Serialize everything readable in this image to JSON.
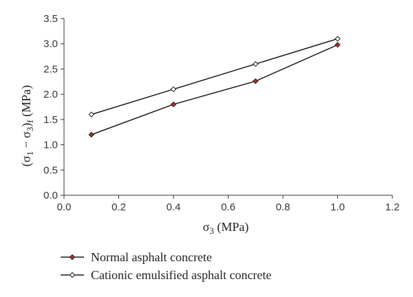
{
  "chart_data": {
    "type": "line",
    "title": "",
    "xlabel": {
      "symbol": "σ",
      "sub": "3",
      "unit": " (MPa)"
    },
    "ylabel": {
      "open": "(σ",
      "sub1": "1",
      "mid": " − σ",
      "sub3": "3",
      "close": ")",
      "subf": "f",
      "unit": " (MPa)"
    },
    "xlim": [
      0.0,
      1.2
    ],
    "ylim": [
      0.0,
      3.5
    ],
    "xticks": [
      0.0,
      0.2,
      0.4,
      0.6,
      0.8,
      1.0,
      1.2
    ],
    "yticks": [
      0.0,
      0.5,
      1.0,
      1.5,
      2.0,
      2.5,
      3.0,
      3.5
    ],
    "grid": false,
    "legend_position": "bottom-left",
    "series": [
      {
        "name": "Normal asphalt concrete",
        "marker": "filled-diamond",
        "color": "#1a1a1a",
        "marker_fill": "#b5302a",
        "x": [
          0.1,
          0.4,
          0.7,
          1.0
        ],
        "y": [
          1.2,
          1.8,
          2.26,
          2.98
        ]
      },
      {
        "name": "Cationic emulsified asphalt concrete",
        "marker": "open-diamond",
        "color": "#1a1a1a",
        "marker_fill": "#ffffff",
        "x": [
          0.1,
          0.4,
          0.7,
          1.0
        ],
        "y": [
          1.6,
          2.1,
          2.6,
          3.1
        ]
      }
    ]
  }
}
